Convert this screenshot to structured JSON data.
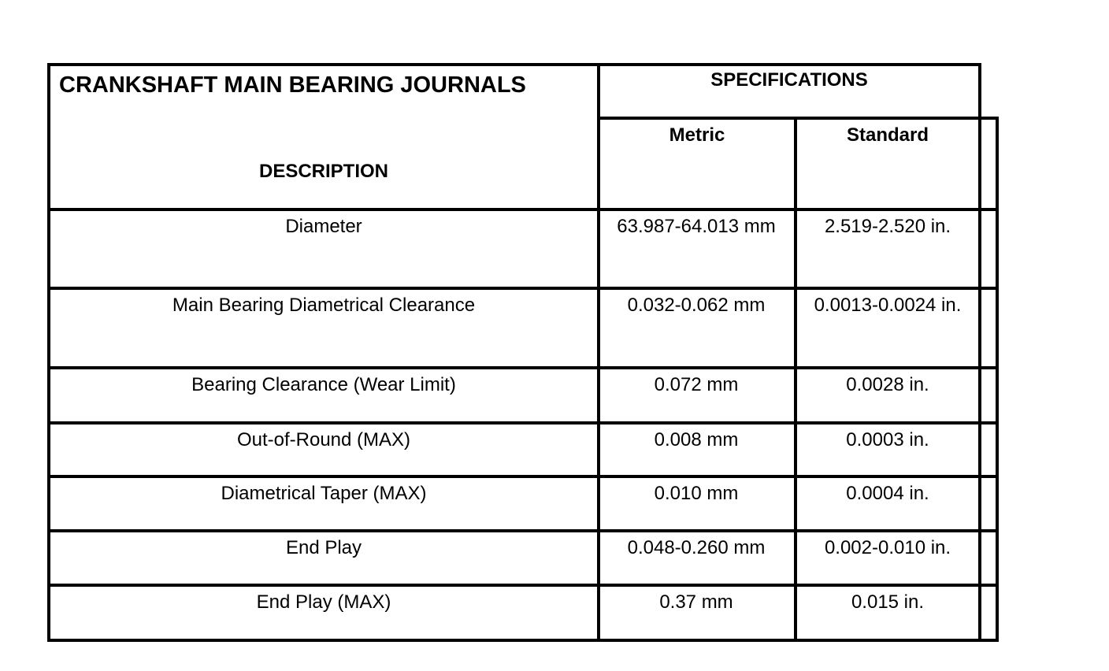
{
  "table": {
    "title": "CRANKSHAFT MAIN BEARING JOURNALS",
    "description_header": "DESCRIPTION",
    "specifications_header": "SPECIFICATIONS",
    "metric_header": "Metric",
    "standard_header": "Standard",
    "rows": [
      {
        "description": "Diameter",
        "metric": "63.987-64.013 mm",
        "standard": "2.519-2.520 in."
      },
      {
        "description": "Main Bearing Diametrical Clearance",
        "metric": "0.032-0.062 mm",
        "standard": "0.0013-0.0024 in."
      },
      {
        "description": "Bearing Clearance (Wear Limit)",
        "metric": "0.072 mm",
        "standard": "0.0028 in."
      },
      {
        "description": "Out-of-Round (MAX)",
        "metric": "0.008 mm",
        "standard": "0.0003 in."
      },
      {
        "description": "Diametrical Taper (MAX)",
        "metric": "0.010 mm",
        "standard": "0.0004 in."
      },
      {
        "description": "End Play",
        "metric": "0.048-0.260 mm",
        "standard": "0.002-0.010 in."
      },
      {
        "description": "End Play (MAX)",
        "metric": "0.37 mm",
        "standard": "0.015 in."
      }
    ]
  }
}
